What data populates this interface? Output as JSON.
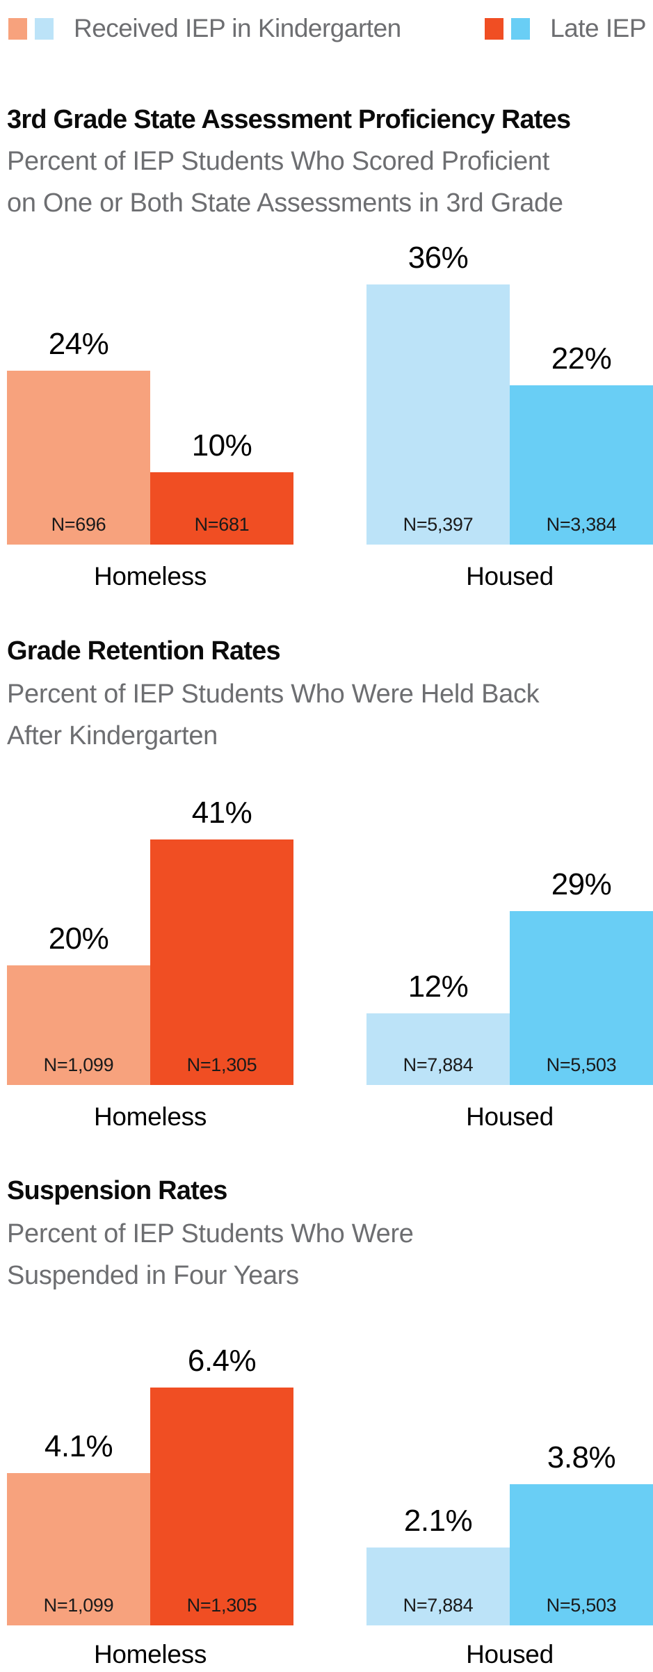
{
  "legend": {
    "position": "top",
    "items": [
      {
        "label": "Received IEP in Kindergarten",
        "swatches": [
          "#f7a27d",
          "#bce3f8"
        ]
      },
      {
        "label": "Late IEP",
        "swatches": [
          "#f04e23",
          "#69cef5"
        ]
      }
    ]
  },
  "colors": {
    "peach": "#f7a27d",
    "red_orange": "#f04e23",
    "light_blue": "#bce3f8",
    "sky_blue": "#69cef5",
    "title_text": "#0b0b0b",
    "subtitle_text": "#6d6e71",
    "background": "#ffffff"
  },
  "chart_data": [
    {
      "type": "bar",
      "title": "3rd Grade State Assessment Proficiency Rates",
      "subtitle_lines": [
        "Percent of IEP Students Who Scored Proficient",
        "on One or Both State Assessments in 3rd Grade"
      ],
      "categories": [
        "Homeless",
        "Housed"
      ],
      "unit": "%",
      "ylim": [
        0,
        36
      ],
      "grid": "off",
      "axes_visible": false,
      "series": [
        {
          "name": "Received IEP in Kindergarten",
          "values": [
            24,
            36
          ],
          "value_labels": [
            "24%",
            "36%"
          ],
          "n_labels": [
            "N=696",
            "N=5,397"
          ],
          "colors": [
            "#f7a27d",
            "#bce3f8"
          ]
        },
        {
          "name": "Late IEP",
          "values": [
            10,
            22
          ],
          "value_labels": [
            "10%",
            "22%"
          ],
          "n_labels": [
            "N=681",
            "N=3,384"
          ],
          "colors": [
            "#f04e23",
            "#69cef5"
          ]
        }
      ]
    },
    {
      "type": "bar",
      "title": "Grade Retention Rates",
      "subtitle_lines": [
        "Percent of IEP Students Who Were Held Back",
        "After Kindergarten"
      ],
      "categories": [
        "Homeless",
        "Housed"
      ],
      "unit": "%",
      "ylim": [
        0,
        41
      ],
      "grid": "off",
      "axes_visible": false,
      "series": [
        {
          "name": "Received IEP in Kindergarten",
          "values": [
            20,
            12
          ],
          "value_labels": [
            "20%",
            "12%"
          ],
          "n_labels": [
            "N=1,099",
            "N=7,884"
          ],
          "colors": [
            "#f7a27d",
            "#bce3f8"
          ]
        },
        {
          "name": "Late IEP",
          "values": [
            41,
            29
          ],
          "value_labels": [
            "41%",
            "29%"
          ],
          "n_labels": [
            "N=1,305",
            "N=5,503"
          ],
          "colors": [
            "#f04e23",
            "#69cef5"
          ]
        }
      ]
    },
    {
      "type": "bar",
      "title": "Suspension Rates",
      "subtitle_lines": [
        "Percent of IEP Students Who Were",
        "Suspended in Four Years"
      ],
      "categories": [
        "Homeless",
        "Housed"
      ],
      "unit": "%",
      "ylim": [
        0,
        6.4
      ],
      "grid": "off",
      "axes_visible": false,
      "series": [
        {
          "name": "Received IEP in Kindergarten",
          "values": [
            4.1,
            2.1
          ],
          "value_labels": [
            "4.1%",
            "2.1%"
          ],
          "n_labels": [
            "N=1,099",
            "N=7,884"
          ],
          "colors": [
            "#f7a27d",
            "#bce3f8"
          ]
        },
        {
          "name": "Late IEP",
          "values": [
            6.4,
            3.8
          ],
          "value_labels": [
            "6.4%",
            "3.8%"
          ],
          "n_labels": [
            "N=1,305",
            "N=5,503"
          ],
          "colors": [
            "#f04e23",
            "#69cef5"
          ]
        }
      ]
    }
  ]
}
